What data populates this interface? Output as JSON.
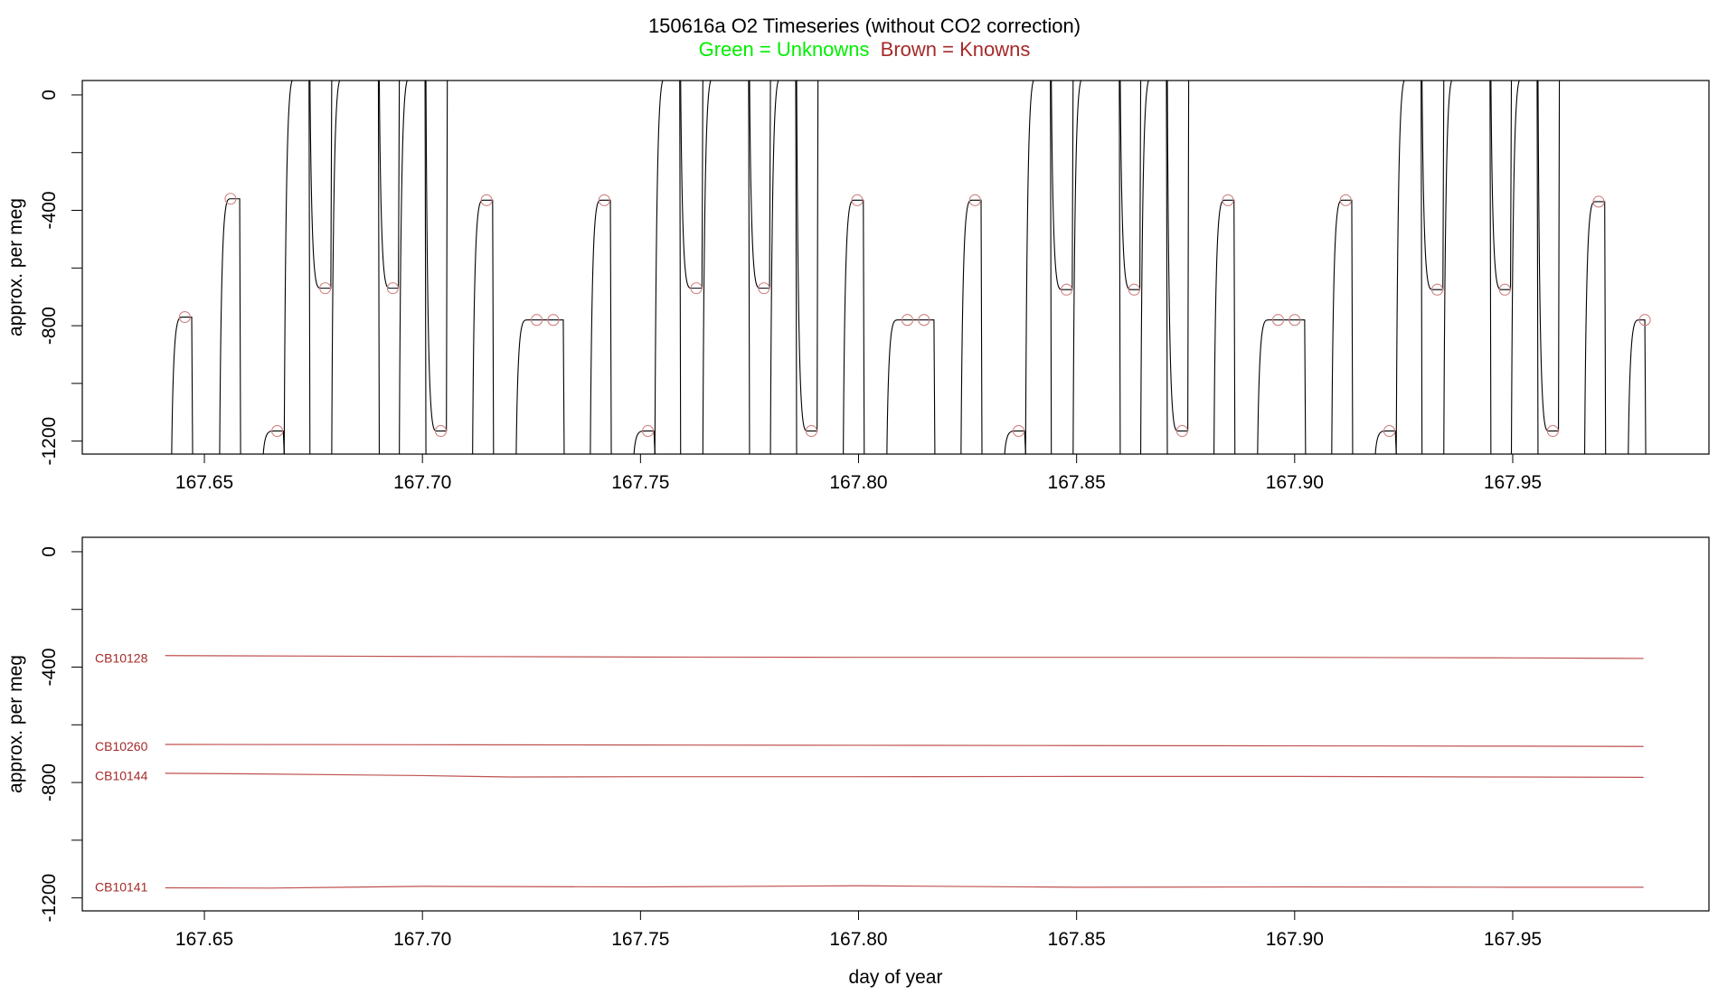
{
  "title": "150616a   O2 Timeseries (without CO2 correction)",
  "legend": {
    "unknowns_label": "Green = Unknowns",
    "knowns_label": "Brown = Knowns",
    "unknowns_color": "#00ee00",
    "knowns_color": "#a52a2a"
  },
  "line_color": "#000000",
  "chart_data": [
    {
      "type": "line",
      "name": "O2 timeseries",
      "xlabel": "",
      "ylabel": "approx. per meg",
      "xlim": [
        167.622,
        167.995
      ],
      "ylim": [
        -1245,
        50
      ],
      "xticks": [
        167.65,
        167.7,
        167.75,
        167.8,
        167.85,
        167.9,
        167.95
      ],
      "xtick_labels": [
        "167.65",
        "167.70",
        "167.75",
        "167.80",
        "167.85",
        "167.90",
        "167.95"
      ],
      "yticks": [
        0,
        -200,
        -400,
        -600,
        -800,
        -1000,
        -1200
      ],
      "ytick_labels": [
        "0",
        "-400",
        "-800",
        "-1200"
      ],
      "ytick_label_values": [
        0,
        -400,
        -800,
        -1200
      ],
      "segments": [
        {
          "x0": 167.6425,
          "x1": 167.6473,
          "level": -770,
          "floor": -1245,
          "label": "CB10144"
        },
        {
          "x0": 167.6535,
          "x1": 167.6583,
          "level": -360,
          "floor": -1245,
          "label": "CB10128"
        },
        {
          "x0": 167.6635,
          "x1": 167.6683,
          "level": -1165,
          "floor": -1245,
          "label": "CB10141"
        },
        {
          "x0": 167.6683,
          "x1": 167.6742,
          "level": 60,
          "floor": -1245
        },
        {
          "x0": 167.6742,
          "x1": 167.6792,
          "level": -670,
          "floor": 60,
          "label": "CB10260"
        },
        {
          "x0": 167.6792,
          "x1": 167.6901,
          "level": 60,
          "floor": -1245
        },
        {
          "x0": 167.6901,
          "x1": 167.6947,
          "level": -670,
          "floor": 60,
          "label": "CB10260"
        },
        {
          "x0": 167.6947,
          "x1": 167.7008,
          "level": 60,
          "floor": -1245
        },
        {
          "x0": 167.7008,
          "x1": 167.7057,
          "level": -1165,
          "floor": 60,
          "label": "CB10141"
        },
        {
          "x0": 167.7115,
          "x1": 167.7163,
          "level": -365,
          "floor": -1245,
          "label": "CB10128"
        },
        {
          "x0": 167.7215,
          "x1": 167.7325,
          "level": -780,
          "floor": -1245,
          "label": "CB10144"
        },
        {
          "x0": 167.7385,
          "x1": 167.7433,
          "level": -365,
          "floor": -1245,
          "label": "CB10128"
        },
        {
          "x0": 167.7485,
          "x1": 167.7533,
          "level": -1165,
          "floor": -1245,
          "label": "CB10141"
        },
        {
          "x0": 167.7533,
          "x1": 167.7592,
          "level": 60,
          "floor": -1245
        },
        {
          "x0": 167.7592,
          "x1": 167.7643,
          "level": -670,
          "floor": 60,
          "label": "CB10260"
        },
        {
          "x0": 167.7643,
          "x1": 167.775,
          "level": 60,
          "floor": -1245
        },
        {
          "x0": 167.775,
          "x1": 167.7798,
          "level": -670,
          "floor": 60,
          "label": "CB10260"
        },
        {
          "x0": 167.7798,
          "x1": 167.7858,
          "level": 60,
          "floor": -1245
        },
        {
          "x0": 167.7858,
          "x1": 167.7907,
          "level": -1165,
          "floor": 60,
          "label": "CB10141"
        },
        {
          "x0": 167.7965,
          "x1": 167.8013,
          "level": -365,
          "floor": -1245,
          "label": "CB10128"
        },
        {
          "x0": 167.8065,
          "x1": 167.8175,
          "level": -780,
          "floor": -1245,
          "label": "CB10144"
        },
        {
          "x0": 167.8235,
          "x1": 167.8283,
          "level": -365,
          "floor": -1245,
          "label": "CB10128"
        },
        {
          "x0": 167.8335,
          "x1": 167.8383,
          "level": -1165,
          "floor": -1245,
          "label": "CB10141"
        },
        {
          "x0": 167.8383,
          "x1": 167.8442,
          "level": 60,
          "floor": -1245
        },
        {
          "x0": 167.8442,
          "x1": 167.8492,
          "level": -675,
          "floor": 60,
          "label": "CB10260"
        },
        {
          "x0": 167.8492,
          "x1": 167.86,
          "level": 60,
          "floor": -1245
        },
        {
          "x0": 167.86,
          "x1": 167.8647,
          "level": -675,
          "floor": 60,
          "label": "CB10260"
        },
        {
          "x0": 167.8647,
          "x1": 167.8708,
          "level": 60,
          "floor": -1245
        },
        {
          "x0": 167.8708,
          "x1": 167.8757,
          "level": -1165,
          "floor": 60,
          "label": "CB10141"
        },
        {
          "x0": 167.8815,
          "x1": 167.8863,
          "level": -365,
          "floor": -1245,
          "label": "CB10128"
        },
        {
          "x0": 167.8915,
          "x1": 167.9025,
          "level": -780,
          "floor": -1245,
          "label": "CB10144"
        },
        {
          "x0": 167.9085,
          "x1": 167.9133,
          "level": -365,
          "floor": -1245,
          "label": "CB10128"
        },
        {
          "x0": 167.9185,
          "x1": 167.9233,
          "level": -1165,
          "floor": -1245,
          "label": "CB10141"
        },
        {
          "x0": 167.9233,
          "x1": 167.9292,
          "level": 60,
          "floor": -1245
        },
        {
          "x0": 167.9292,
          "x1": 167.9342,
          "level": -675,
          "floor": 60,
          "label": "CB10260"
        },
        {
          "x0": 167.9342,
          "x1": 167.945,
          "level": 60,
          "floor": -1245
        },
        {
          "x0": 167.945,
          "x1": 167.9497,
          "level": -675,
          "floor": 60,
          "label": "CB10260"
        },
        {
          "x0": 167.9497,
          "x1": 167.9558,
          "level": 60,
          "floor": -1245
        },
        {
          "x0": 167.9558,
          "x1": 167.9607,
          "level": -1165,
          "floor": 60,
          "label": "CB10141"
        },
        {
          "x0": 167.9665,
          "x1": 167.9713,
          "level": -370,
          "floor": -1245,
          "label": "CB10128"
        },
        {
          "x0": 167.9765,
          "x1": 167.9805,
          "level": -780,
          "floor": -1245,
          "label": "CB10144"
        }
      ],
      "markers": [
        {
          "x": 167.6455,
          "y": -770
        },
        {
          "x": 167.656,
          "y": -360
        },
        {
          "x": 167.6667,
          "y": -1165
        },
        {
          "x": 167.6777,
          "y": -670
        },
        {
          "x": 167.6932,
          "y": -670
        },
        {
          "x": 167.7042,
          "y": -1165
        },
        {
          "x": 167.7147,
          "y": -365
        },
        {
          "x": 167.7262,
          "y": -780
        },
        {
          "x": 167.73,
          "y": -780
        },
        {
          "x": 167.7417,
          "y": -365
        },
        {
          "x": 167.7517,
          "y": -1165
        },
        {
          "x": 167.7628,
          "y": -670
        },
        {
          "x": 167.7783,
          "y": -670
        },
        {
          "x": 167.7892,
          "y": -1165
        },
        {
          "x": 167.7997,
          "y": -365
        },
        {
          "x": 167.8112,
          "y": -780
        },
        {
          "x": 167.815,
          "y": -780
        },
        {
          "x": 167.8267,
          "y": -365
        },
        {
          "x": 167.8367,
          "y": -1165
        },
        {
          "x": 167.8477,
          "y": -675
        },
        {
          "x": 167.8632,
          "y": -675
        },
        {
          "x": 167.8742,
          "y": -1165
        },
        {
          "x": 167.8847,
          "y": -365
        },
        {
          "x": 167.8962,
          "y": -780
        },
        {
          "x": 167.9,
          "y": -780
        },
        {
          "x": 167.9117,
          "y": -365
        },
        {
          "x": 167.9217,
          "y": -1165
        },
        {
          "x": 167.9327,
          "y": -675
        },
        {
          "x": 167.9482,
          "y": -675
        },
        {
          "x": 167.9592,
          "y": -1165
        },
        {
          "x": 167.9697,
          "y": -370
        },
        {
          "x": 167.9803,
          "y": -780
        }
      ]
    },
    {
      "type": "line",
      "name": "Knowns",
      "xlabel": "day of year",
      "ylabel": "approx. per meg",
      "xlim": [
        167.622,
        167.995
      ],
      "ylim": [
        -1245,
        50
      ],
      "xticks": [
        167.65,
        167.7,
        167.75,
        167.8,
        167.85,
        167.9,
        167.95
      ],
      "xtick_labels": [
        "167.65",
        "167.70",
        "167.75",
        "167.80",
        "167.85",
        "167.90",
        "167.95"
      ],
      "yticks": [
        0,
        -200,
        -400,
        -600,
        -800,
        -1000,
        -1200
      ],
      "ytick_labels": [
        "0",
        "-400",
        "-800",
        "-1200"
      ],
      "ytick_label_values": [
        0,
        -400,
        -800,
        -1200
      ],
      "series": [
        {
          "name": "CB10128",
          "label_y": -385,
          "x": [
            167.641,
            167.7,
            167.75,
            167.8,
            167.85,
            167.9,
            167.95,
            167.98
          ],
          "values": [
            -360,
            -363,
            -365,
            -366,
            -366,
            -366,
            -368,
            -370
          ]
        },
        {
          "name": "CB10260",
          "label_y": -690,
          "x": [
            167.641,
            167.7,
            167.75,
            167.8,
            167.85,
            167.9,
            167.95,
            167.98
          ],
          "values": [
            -668,
            -669,
            -670,
            -671,
            -672,
            -673,
            -674,
            -675
          ]
        },
        {
          "name": "CB10144",
          "label_y": -792,
          "x": [
            167.641,
            167.66,
            167.7,
            167.72,
            167.75,
            167.8,
            167.85,
            167.9,
            167.95,
            167.98
          ],
          "values": [
            -768,
            -770,
            -776,
            -781,
            -780,
            -780,
            -779,
            -779,
            -781,
            -782
          ]
        },
        {
          "name": "CB10141",
          "label_y": -1178,
          "x": [
            167.641,
            167.665,
            167.7,
            167.75,
            167.8,
            167.85,
            167.9,
            167.95,
            167.98
          ],
          "values": [
            -1165,
            -1166,
            -1160,
            -1162,
            -1158,
            -1163,
            -1162,
            -1163,
            -1163
          ]
        }
      ]
    }
  ]
}
